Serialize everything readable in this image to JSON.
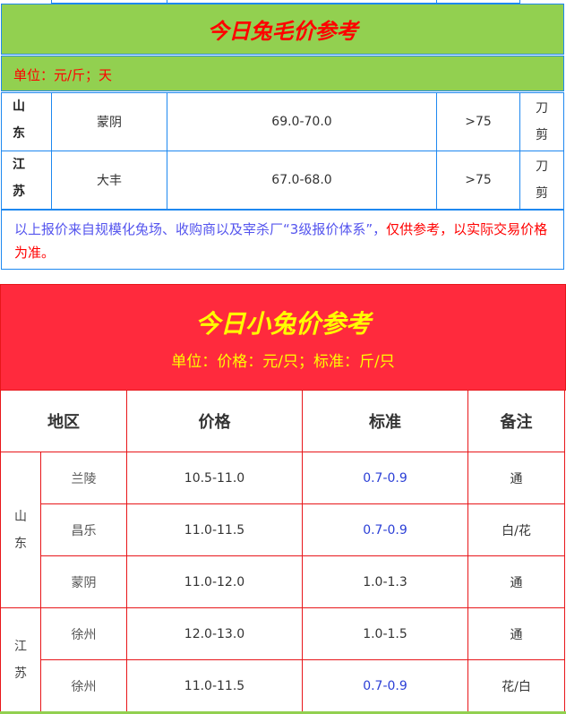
{
  "wool": {
    "title": "今日兔毛价参考",
    "unit": "单位：元/斤；天",
    "rows": [
      {
        "province": [
          "山",
          "东"
        ],
        "city": "蒙阴",
        "price": "69.0-70.0",
        "days": ">75",
        "method": [
          "刀",
          "剪"
        ]
      },
      {
        "province": [
          "江",
          "苏"
        ],
        "city": "大丰",
        "price": "67.0-68.0",
        "days": ">75",
        "method": [
          "刀",
          "剪"
        ]
      }
    ],
    "note_blue": "以上报价来自规模化兔场、收购商以及宰杀厂“3级报价体系”，",
    "note_red": "仅供参考，以实际交易价格为准。"
  },
  "rabbit": {
    "title": "今日小兔价参考",
    "unit": "单位：价格：元/只；标准：斤/只",
    "headers": [
      "地区",
      "价格",
      "标准",
      "备注"
    ],
    "groups": [
      {
        "province": [
          "山",
          "东"
        ]
      },
      {
        "province": [
          "江",
          "苏"
        ]
      }
    ],
    "rows": [
      {
        "city": "兰陵",
        "price": "10.5-11.0",
        "std": "0.7-0.9",
        "note": "通",
        "std_blue": true
      },
      {
        "city": "昌乐",
        "price": "11.0-11.5",
        "std": "0.7-0.9",
        "note": "白/花",
        "std_blue": true
      },
      {
        "city": "蒙阴",
        "price": "11.0-12.0",
        "std": "1.0-1.3",
        "note": "通",
        "std_blue": false
      },
      {
        "city": "徐州",
        "price": "12.0-13.0",
        "std": "1.0-1.5",
        "note": "通",
        "std_blue": false
      },
      {
        "city": "徐州",
        "price": "11.0-11.5",
        "std": "0.7-0.9",
        "note": "花/白",
        "std_blue": true
      }
    ]
  },
  "colors": {
    "green": "#92d050",
    "red": "#ff2a3d",
    "blue_border": "#1e88f0",
    "yellow": "#ffff00",
    "blue_text": "#2b3fd6"
  }
}
